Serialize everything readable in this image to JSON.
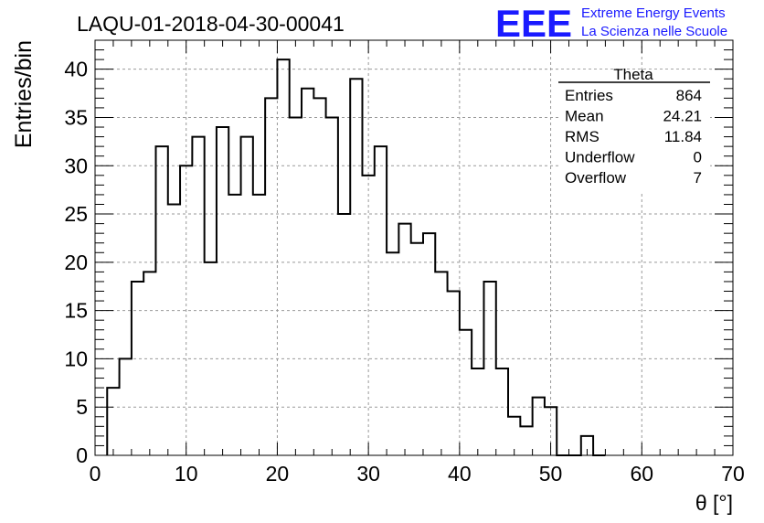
{
  "chart_data": {
    "type": "histogram",
    "title": "LAQU-01-2018-04-30-00041",
    "xlabel": "θ [°]",
    "ylabel": "Entries/bin",
    "xlim": [
      0,
      70
    ],
    "ylim": [
      0,
      43
    ],
    "grid": true,
    "bin_width": 1.3333,
    "x_ticks": [
      "0",
      "10",
      "20",
      "30",
      "40",
      "50",
      "60",
      "70"
    ],
    "y_ticks": [
      "0",
      "5",
      "10",
      "15",
      "20",
      "25",
      "30",
      "35",
      "40"
    ],
    "bin_start": [
      1.33,
      2.67,
      4.0,
      5.33,
      6.67,
      8.0,
      9.33,
      10.67,
      12.0,
      13.33,
      14.67,
      16.0,
      17.33,
      18.67,
      20.0,
      21.33,
      22.67,
      24.0,
      25.33,
      26.67,
      28.0,
      29.33,
      30.67,
      32.0,
      33.33,
      34.67,
      36.0,
      37.33,
      38.67,
      40.0,
      41.33,
      42.67,
      44.0,
      45.33,
      46.67,
      48.0,
      49.33,
      50.67,
      52.0,
      53.33,
      54.67
    ],
    "values": [
      7,
      10,
      18,
      19,
      32,
      26,
      30,
      33,
      20,
      34,
      27,
      33,
      27,
      37,
      41,
      35,
      38,
      37,
      35,
      25,
      39,
      29,
      32,
      21,
      24,
      22,
      23,
      19,
      17,
      13,
      9,
      18,
      9,
      4,
      3,
      6,
      5,
      0,
      0,
      2,
      0
    ],
    "stats_box": {
      "title": "Theta",
      "rows": [
        {
          "label": "Entries",
          "value": "864"
        },
        {
          "label": "Mean",
          "value": "24.21"
        },
        {
          "label": "RMS",
          "value": "11.84"
        },
        {
          "label": "Underflow",
          "value": "0"
        },
        {
          "label": "Overflow",
          "value": "7"
        }
      ]
    }
  },
  "logo": {
    "text": "EEE",
    "line1": "Extreme Energy Events",
    "line2": "La Scienza nelle Scuole",
    "color": "#1a1aff"
  }
}
